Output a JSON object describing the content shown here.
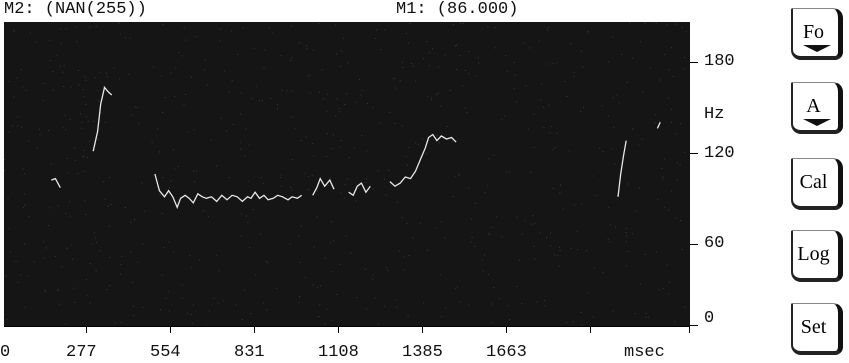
{
  "header": {
    "marker2": "M2: (NAN(255))",
    "marker1": "M1: (86.000)"
  },
  "chart_data": {
    "type": "line",
    "ylabel": "Hz",
    "xlabel": "msec",
    "ylim": [
      0,
      200
    ],
    "xlim": [
      0,
      2000
    ],
    "y_ticks": [
      "180",
      "Hz",
      "120",
      "60",
      "0"
    ],
    "x_ticks": [
      "0",
      "277",
      "554",
      "831",
      "1108",
      "1385",
      "1663",
      "msec"
    ],
    "segments": [
      [
        [
          138,
          96
        ],
        [
          150,
          97
        ],
        [
          164,
          91
        ]
      ],
      [
        [
          260,
          115
        ],
        [
          273,
          128
        ],
        [
          282,
          146
        ],
        [
          293,
          157
        ],
        [
          304,
          154
        ],
        [
          314,
          152
        ]
      ],
      [
        [
          440,
          100
        ],
        [
          453,
          89
        ],
        [
          468,
          85
        ],
        [
          480,
          89
        ],
        [
          492,
          85
        ],
        [
          505,
          78
        ],
        [
          515,
          84
        ],
        [
          528,
          86
        ],
        [
          540,
          84
        ],
        [
          552,
          81
        ],
        [
          565,
          87
        ],
        [
          578,
          85
        ],
        [
          590,
          84
        ],
        [
          605,
          85
        ],
        [
          620,
          82
        ],
        [
          635,
          86
        ],
        [
          650,
          83
        ],
        [
          665,
          86
        ],
        [
          680,
          85
        ],
        [
          695,
          82
        ],
        [
          710,
          85
        ],
        [
          720,
          84
        ],
        [
          732,
          88
        ],
        [
          745,
          84
        ],
        [
          758,
          86
        ],
        [
          770,
          83
        ],
        [
          785,
          84
        ],
        [
          798,
          86
        ],
        [
          812,
          85
        ],
        [
          828,
          83
        ],
        [
          840,
          85
        ],
        [
          855,
          84
        ],
        [
          868,
          86
        ]
      ],
      [
        [
          900,
          86
        ],
        [
          912,
          91
        ],
        [
          922,
          97
        ],
        [
          935,
          92
        ],
        [
          950,
          96
        ],
        [
          962,
          90
        ]
      ],
      [
        [
          1005,
          88
        ],
        [
          1018,
          86
        ],
        [
          1030,
          92
        ],
        [
          1042,
          94
        ],
        [
          1055,
          88
        ],
        [
          1068,
          92
        ]
      ],
      [
        [
          1125,
          95
        ],
        [
          1140,
          92
        ],
        [
          1155,
          94
        ],
        [
          1170,
          98
        ],
        [
          1185,
          97
        ],
        [
          1200,
          102
        ],
        [
          1215,
          110
        ],
        [
          1228,
          117
        ],
        [
          1238,
          124
        ],
        [
          1250,
          126
        ],
        [
          1262,
          122
        ],
        [
          1275,
          125
        ],
        [
          1290,
          123
        ],
        [
          1305,
          124
        ],
        [
          1318,
          121
        ]
      ],
      [
        [
          1790,
          85
        ],
        [
          1798,
          100
        ],
        [
          1806,
          112
        ],
        [
          1814,
          122
        ]
      ],
      [
        [
          1905,
          130
        ],
        [
          1913,
          134
        ]
      ]
    ],
    "colors": {
      "background": "#151515",
      "trace": "#e8e8e8"
    }
  },
  "buttons": [
    {
      "label": "Fo",
      "has_arrow": true
    },
    {
      "label": "A",
      "has_arrow": true
    },
    {
      "label": "Cal",
      "has_arrow": false
    },
    {
      "label": "Log",
      "has_arrow": false
    },
    {
      "label": "Set",
      "has_arrow": false
    }
  ]
}
